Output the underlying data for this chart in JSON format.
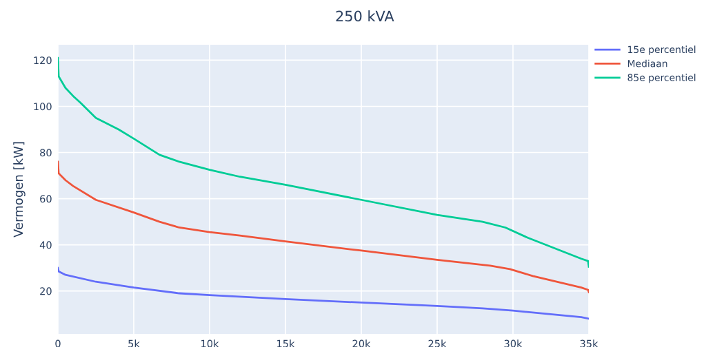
{
  "chart_data": {
    "type": "line",
    "title": "250 kVA",
    "ylabel": "Vermogen [kW]",
    "xlim": [
      0,
      35000
    ],
    "ylim": [
      1.4,
      126.7
    ],
    "xticks": [
      0,
      {
        "value": 5000,
        "label": "5k"
      },
      {
        "value": 10000,
        "label": "10k"
      },
      {
        "value": 15000,
        "label": "15k"
      },
      {
        "value": 20000,
        "label": "20k"
      },
      {
        "value": 25000,
        "label": "25k"
      },
      {
        "value": 30000,
        "label": "30k"
      },
      {
        "value": 35000,
        "label": "35k"
      }
    ],
    "yticks": [
      20,
      40,
      60,
      80,
      100,
      120
    ],
    "grid": true,
    "legend": "top right",
    "line_style": "solid",
    "series": [
      {
        "name": "15e percentiel",
        "color": "#636efa",
        "x": [
          0,
          50,
          500,
          2500,
          5000,
          8000,
          10000,
          15000,
          20000,
          25000,
          28000,
          30000,
          34500,
          35000
        ],
        "values": [
          30,
          28.5,
          27,
          24,
          21.5,
          19,
          18.2,
          16.5,
          15,
          13.5,
          12.5,
          11.5,
          8.7,
          8
        ]
      },
      {
        "name": "Mediaan",
        "color": "#ef553b",
        "x": [
          0,
          50,
          500,
          1000,
          2500,
          5000,
          6700,
          8000,
          10000,
          12000,
          15000,
          20000,
          25000,
          28500,
          29800,
          31300,
          34500,
          34950,
          35000
        ],
        "values": [
          76,
          71,
          68,
          65.5,
          59.5,
          54,
          50,
          47.5,
          45.5,
          44,
          41.5,
          37.5,
          33.5,
          31,
          29.5,
          26.5,
          21.5,
          20.5,
          19.5
        ]
      },
      {
        "name": "85e percentiel",
        "color": "#00cc96",
        "x": [
          0,
          50,
          500,
          1000,
          1500,
          2500,
          4000,
          5000,
          6700,
          8000,
          10000,
          12000,
          15000,
          20000,
          25000,
          28000,
          29500,
          31000,
          34500,
          34950,
          35000
        ],
        "values": [
          121,
          113,
          108,
          104.5,
          101.5,
          95,
          90,
          86,
          79,
          76,
          72.5,
          69.5,
          66,
          59.5,
          53,
          50,
          47.5,
          43,
          34,
          33,
          30.5
        ]
      }
    ]
  }
}
